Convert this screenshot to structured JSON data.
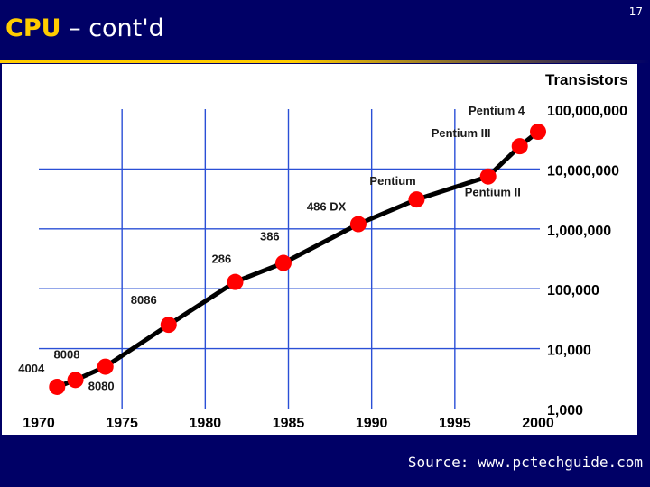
{
  "slide": {
    "title_highlight": "CPU",
    "title_rest": " – cont'd",
    "number": "17",
    "source": "Source: www.pctechguide.com"
  },
  "colors": {
    "background": "#000066",
    "accent": "#ffcc00",
    "grid": "#2a4fd6",
    "line": "#000000",
    "marker": "#ff0000"
  },
  "chart_data": {
    "type": "line",
    "title": "",
    "ylabel": "Transistors",
    "xlabel": "",
    "y_scale": "log",
    "x_range": [
      1970,
      2000
    ],
    "y_range": [
      1000,
      100000000
    ],
    "x_ticks": [
      "1970",
      "1975",
      "1980",
      "1985",
      "1990",
      "1995",
      "2000"
    ],
    "y_ticks": [
      {
        "value": 100000000,
        "label": "100,000,000"
      },
      {
        "value": 10000000,
        "label": "10,000,000"
      },
      {
        "value": 1000000,
        "label": "1,000,000"
      },
      {
        "value": 100000,
        "label": "100,000"
      },
      {
        "value": 10000,
        "label": "10,000"
      },
      {
        "value": 1000,
        "label": "1,000"
      }
    ],
    "grid": true,
    "series": [
      {
        "points": [
          {
            "label": "4004",
            "x": 1971.1,
            "y": 2300
          },
          {
            "label": "8008",
            "x": 1972.2,
            "y": 3000
          },
          {
            "label": "8080",
            "x": 1974.0,
            "y": 5000
          },
          {
            "label": "8086",
            "x": 1977.8,
            "y": 25000
          },
          {
            "label": "286",
            "x": 1981.8,
            "y": 130000
          },
          {
            "label": "386",
            "x": 1984.7,
            "y": 270000
          },
          {
            "label": "486 DX",
            "x": 1989.2,
            "y": 1200000
          },
          {
            "label": "Pentium",
            "x": 1992.7,
            "y": 3100000
          },
          {
            "label": "Pentium II",
            "x": 1997.0,
            "y": 7500000
          },
          {
            "label": "Pentium III",
            "x": 1998.9,
            "y": 24000000
          },
          {
            "label": "Pentium 4",
            "x": 2000.0,
            "y": 42000000
          }
        ]
      }
    ]
  }
}
